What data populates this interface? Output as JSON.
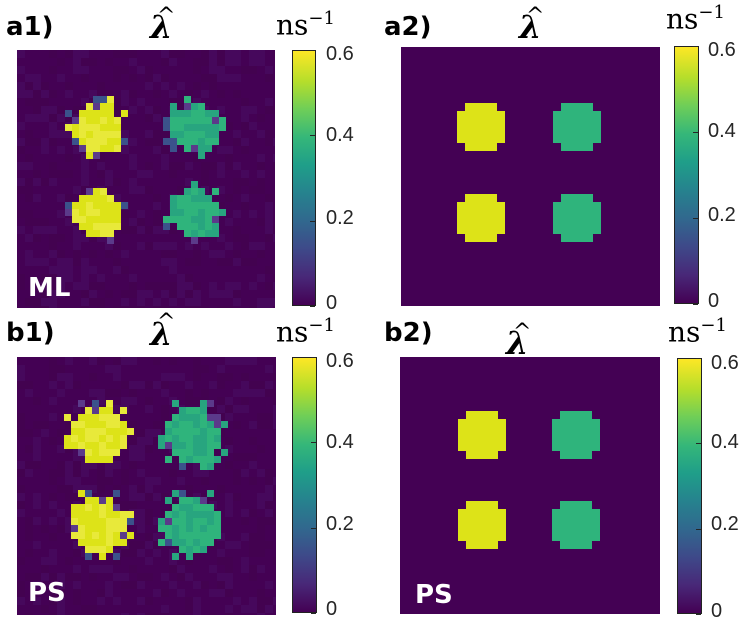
{
  "panels": [
    {
      "label": "a1)",
      "title": "λ",
      "hat": "^",
      "unit": "ns",
      "unit_exp": "−1",
      "method": "ML",
      "ticks": [
        "0.6",
        "0.4",
        "0.2",
        "0"
      ],
      "colorbar_max": 0.6,
      "colorbar_min": 0
    },
    {
      "label": "a2)",
      "title": "λ",
      "hat": "^",
      "unit": "ns",
      "unit_exp": "−1",
      "method": "",
      "ticks": [
        "0.6",
        "0.4",
        "0.2",
        "0"
      ],
      "colorbar_max": 0.6,
      "colorbar_min": 0
    },
    {
      "label": "b1)",
      "title": "λ",
      "hat": "^",
      "unit": "ns",
      "unit_exp": "−1",
      "method": "PS",
      "ticks": [
        "0.6",
        "0.4",
        "0.2",
        "0"
      ],
      "colorbar_max": 0.6,
      "colorbar_min": 0
    },
    {
      "label": "b2)",
      "title": "λ",
      "hat": "^",
      "unit": "ns",
      "unit_exp": "−1",
      "method": "PS",
      "ticks": [
        "0.6",
        "0.4",
        "0.2",
        "0"
      ],
      "colorbar_max": 0.6,
      "colorbar_min": 0
    }
  ],
  "colors": {
    "background": "#440154",
    "yellow_disc": "#dde318",
    "green_disc": "#2fb47c",
    "noise_purple": "#46085c"
  }
}
